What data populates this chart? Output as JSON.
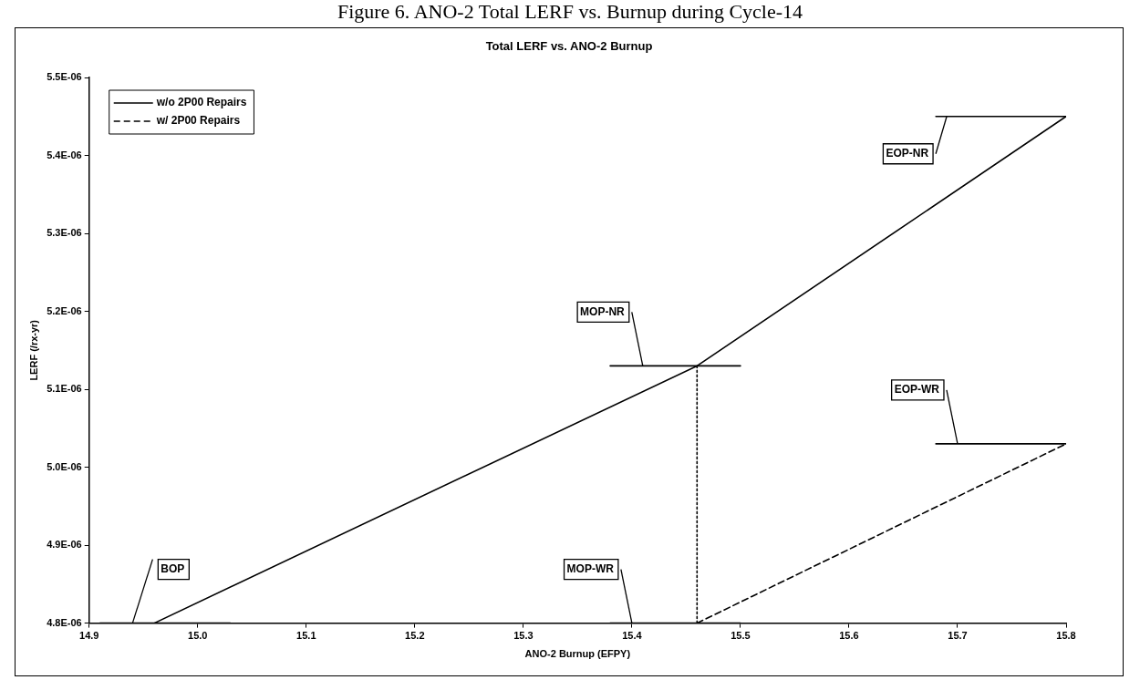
{
  "chart_data": {
    "type": "line",
    "title": "Figure 6.  ANO-2 Total LERF vs. Burnup during Cycle-14",
    "subtitle": "Total  LERF vs. ANO-2 Burnup",
    "xlabel": "ANO-2 Burnup (EFPY)",
    "ylabel": "LERF (/rx-yr)",
    "xlim": [
      14.9,
      15.8
    ],
    "xticks": [
      {
        "value": 14.9,
        "label": "14.9"
      },
      {
        "value": 15.0,
        "label": "15.0"
      },
      {
        "value": 15.1,
        "label": "15.1"
      },
      {
        "value": 15.2,
        "label": "15.2"
      },
      {
        "value": 15.3,
        "label": "15.3"
      },
      {
        "value": 15.4,
        "label": "15.4"
      },
      {
        "value": 15.5,
        "label": "15.5"
      },
      {
        "value": 15.6,
        "label": "15.6"
      },
      {
        "value": 15.7,
        "label": "15.7"
      },
      {
        "value": 15.8,
        "label": "15.8"
      }
    ],
    "ylim": [
      4.8e-06,
      5.5e-06
    ],
    "yticks": [
      {
        "value": 4.8e-06,
        "label": "4.8E-06"
      },
      {
        "value": 4.9e-06,
        "label": "4.9E-06"
      },
      {
        "value": 5e-06,
        "label": "5.0E-06"
      },
      {
        "value": 5.1e-06,
        "label": "5.1E-06"
      },
      {
        "value": 5.2e-06,
        "label": "5.2E-06"
      },
      {
        "value": 5.3e-06,
        "label": "5.3E-06"
      },
      {
        "value": 5.4e-06,
        "label": "5.4E-06"
      },
      {
        "value": 5.5e-06,
        "label": "5.5E-06"
      }
    ],
    "grid": false,
    "legend": "top left",
    "marker": "none",
    "series": [
      {
        "name": "w/o 2P00 Repairs",
        "color": "#000000",
        "line_style": "solid",
        "x": [
          14.96,
          15.46,
          15.8
        ],
        "values": [
          4.8e-06,
          5.13e-06,
          5.45e-06
        ]
      },
      {
        "name": "w/ 2P00 Repairs",
        "color": "#000000",
        "line_style": "dashed",
        "x": [
          15.46,
          15.8
        ],
        "values": [
          4.8e-06,
          5.03e-06
        ]
      },
      {
        "color": "#000000",
        "line_style": "dotted",
        "x": [
          15.46,
          15.46
        ],
        "values": [
          5.13e-06,
          4.8e-06
        ]
      },
      {
        "color": "#000000",
        "line_style": "solid",
        "x": [
          14.91,
          15.03
        ],
        "values": [
          4.8e-06,
          4.8e-06
        ]
      },
      {
        "color": "#000000",
        "line_style": "solid",
        "x": [
          15.38,
          15.5
        ],
        "values": [
          5.13e-06,
          5.13e-06
        ]
      },
      {
        "color": "#000000",
        "line_style": "solid",
        "x": [
          15.38,
          15.5
        ],
        "values": [
          4.8e-06,
          4.8e-06
        ]
      },
      {
        "color": "#000000",
        "line_style": "solid",
        "x": [
          15.68,
          15.8
        ],
        "values": [
          5.45e-06,
          5.45e-06
        ]
      },
      {
        "color": "#000000",
        "line_style": "solid",
        "x": [
          15.68,
          15.8
        ],
        "values": [
          5.03e-06,
          5.03e-06
        ]
      }
    ],
    "annotations": [
      {
        "text": "BOP",
        "x": 14.94,
        "y": 4.8e-06
      },
      {
        "text": "MOP-NR",
        "x": 15.41,
        "y": 5.13e-06
      },
      {
        "text": "MOP-WR",
        "x": 15.4,
        "y": 4.8e-06
      },
      {
        "text": "EOP-NR",
        "x": 15.69,
        "y": 5.45e-06
      },
      {
        "text": "EOP-WR",
        "x": 15.7,
        "y": 5.03e-06
      }
    ]
  }
}
